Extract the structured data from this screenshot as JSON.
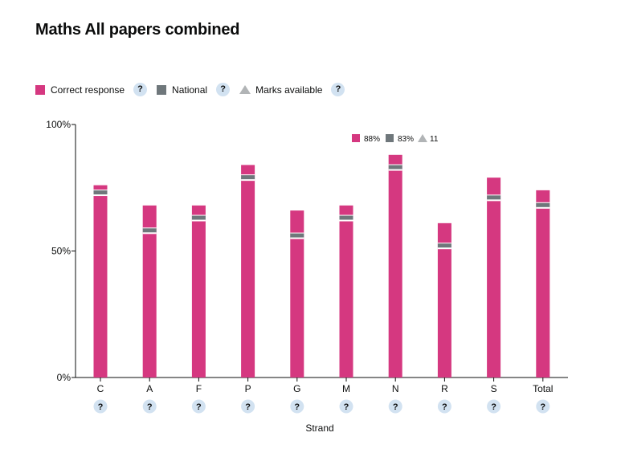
{
  "page": {
    "title": "Maths All papers combined"
  },
  "legend": {
    "correct_label": "Correct response",
    "national_label": "National",
    "marks_label": "Marks available",
    "help_glyph": "?"
  },
  "colors": {
    "correct": "#d53880",
    "national": "#6f777b",
    "marks": "#b1b4b6",
    "help_bg": "#d2e2f1"
  },
  "tooltip": {
    "correct": "88%",
    "national": "83%",
    "marks": "11"
  },
  "chart_data": {
    "type": "bar",
    "xlabel": "Strand",
    "ylabel": "",
    "ylim": [
      0,
      100
    ],
    "yticks": [
      "0%",
      "50%",
      "100%"
    ],
    "categories": [
      "C",
      "A",
      "F",
      "P",
      "G",
      "M",
      "N",
      "R",
      "S",
      "Total"
    ],
    "series": [
      {
        "name": "Correct response",
        "values": [
          76,
          68,
          68,
          84,
          66,
          68,
          88,
          61,
          79,
          74
        ]
      },
      {
        "name": "National",
        "values": [
          73,
          58,
          63,
          79,
          56,
          63,
          83,
          52,
          71,
          68
        ]
      }
    ],
    "tooltip_category": "N"
  }
}
